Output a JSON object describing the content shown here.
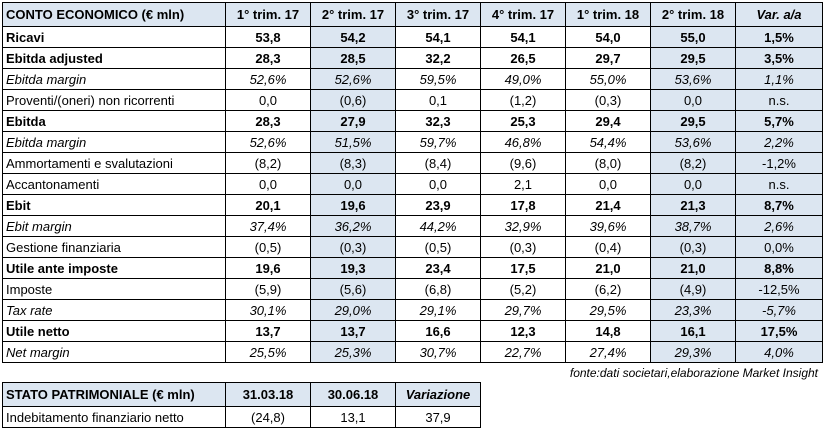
{
  "income_table": {
    "columns": [
      "CONTO ECONOMICO (€ mln)",
      "1° trim. 17",
      "2° trim. 17",
      "3° trim. 17",
      "4° trim. 17",
      "1° trim. 18",
      "2° trim. 18",
      "Var. a/a"
    ],
    "rows": [
      {
        "style": "bold",
        "cells": [
          "Ricavi",
          "53,8",
          "54,2",
          "54,1",
          "54,1",
          "54,0",
          "55,0",
          "1,5%"
        ]
      },
      {
        "style": "bold",
        "cells": [
          "Ebitda adjusted",
          "28,3",
          "28,5",
          "32,2",
          "26,5",
          "29,7",
          "29,5",
          "3,5%"
        ]
      },
      {
        "style": "italic",
        "cells": [
          "Ebitda margin",
          "52,6%",
          "52,6%",
          "59,5%",
          "49,0%",
          "55,0%",
          "53,6%",
          "1,1%"
        ]
      },
      {
        "style": "normal",
        "cells": [
          "Proventi/(oneri) non ricorrenti",
          "0,0",
          "(0,6)",
          "0,1",
          "(1,2)",
          "(0,3)",
          "0,0",
          "n.s."
        ]
      },
      {
        "style": "bold",
        "cells": [
          "Ebitda",
          "28,3",
          "27,9",
          "32,3",
          "25,3",
          "29,4",
          "29,5",
          "5,7%"
        ]
      },
      {
        "style": "italic",
        "cells": [
          "Ebitda margin",
          "52,6%",
          "51,5%",
          "59,7%",
          "46,8%",
          "54,4%",
          "53,6%",
          "2,2%"
        ]
      },
      {
        "style": "normal",
        "cells": [
          "Ammortamenti e svalutazioni",
          "(8,2)",
          "(8,3)",
          "(8,4)",
          "(9,6)",
          "(8,0)",
          "(8,2)",
          "-1,2%"
        ]
      },
      {
        "style": "normal",
        "cells": [
          "Accantonamenti",
          "0,0",
          "0,0",
          "0,0",
          "2,1",
          "0,0",
          "0,0",
          "n.s."
        ]
      },
      {
        "style": "bold",
        "cells": [
          "Ebit",
          "20,1",
          "19,6",
          "23,9",
          "17,8",
          "21,4",
          "21,3",
          "8,7%"
        ]
      },
      {
        "style": "italic",
        "cells": [
          "Ebit margin",
          "37,4%",
          "36,2%",
          "44,2%",
          "32,9%",
          "39,6%",
          "38,7%",
          "2,6%"
        ]
      },
      {
        "style": "normal",
        "cells": [
          "Gestione finanziaria",
          "(0,5)",
          "(0,3)",
          "(0,5)",
          "(0,3)",
          "(0,4)",
          "(0,3)",
          "0,0%"
        ]
      },
      {
        "style": "bold",
        "cells": [
          "Utile ante imposte",
          "19,6",
          "19,3",
          "23,4",
          "17,5",
          "21,0",
          "21,0",
          "8,8%"
        ]
      },
      {
        "style": "normal",
        "cells": [
          "Imposte",
          "(5,9)",
          "(5,6)",
          "(6,8)",
          "(5,2)",
          "(6,2)",
          "(4,9)",
          "-12,5%"
        ]
      },
      {
        "style": "italic",
        "cells": [
          "Tax rate",
          "30,1%",
          "29,0%",
          "29,1%",
          "29,7%",
          "29,5%",
          "23,3%",
          "-5,7%"
        ]
      },
      {
        "style": "bold",
        "cells": [
          "Utile netto",
          "13,7",
          "13,7",
          "16,6",
          "12,3",
          "14,8",
          "16,1",
          "17,5%"
        ]
      },
      {
        "style": "italic",
        "cells": [
          "Net margin",
          "25,5%",
          "25,3%",
          "30,7%",
          "22,7%",
          "27,4%",
          "29,3%",
          "4,0%"
        ]
      }
    ]
  },
  "source": "fonte:dati societari,elaborazione Market Insight",
  "balance_table": {
    "columns": [
      "STATO PATRIMONIALE (€ mln)",
      "31.03.18",
      "30.06.18",
      "Variazione"
    ],
    "rows": [
      {
        "style": "normal",
        "cells": [
          "Indebitamento finanziario netto",
          "(24,8)",
          "13,1",
          "37,9"
        ]
      }
    ]
  }
}
